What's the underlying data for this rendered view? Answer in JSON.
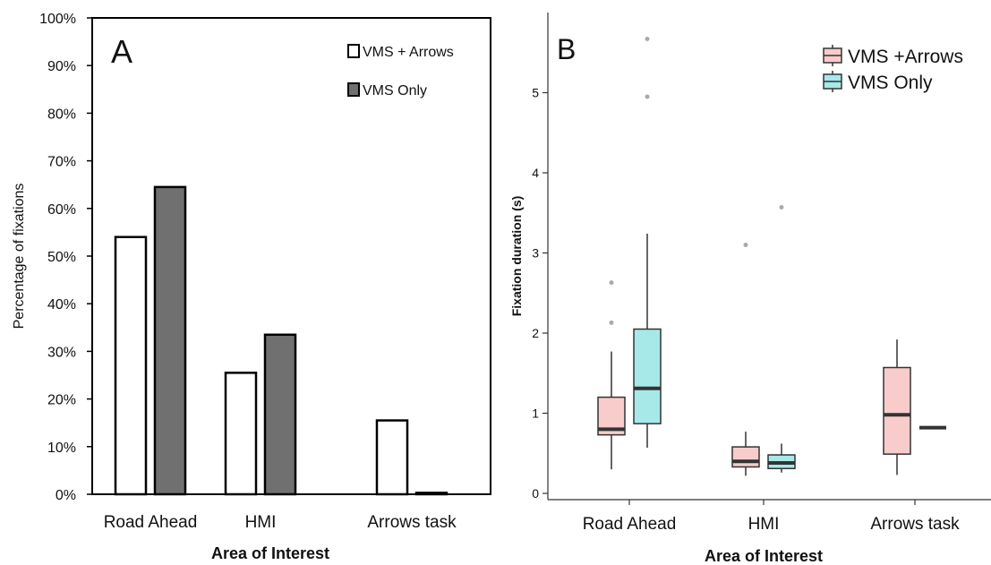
{
  "chart_data": [
    {
      "type": "bar",
      "panel_label": "A",
      "categories": [
        "Road Ahead",
        "HMI",
        "Arrows task"
      ],
      "series": [
        {
          "name": "VMS + Arrows",
          "values": [
            54,
            25.5,
            15.5
          ],
          "color": "#ffffff"
        },
        {
          "name": "VMS Only",
          "values": [
            64.5,
            33.5,
            0.3
          ],
          "color": "#707070"
        }
      ],
      "y_ticks": [
        "0%",
        "10%",
        "20%",
        "30%",
        "40%",
        "50%",
        "60%",
        "70%",
        "80%",
        "90%",
        "100%"
      ],
      "ylim": [
        0,
        100
      ],
      "xlabel": "Area of Interest",
      "ylabel": "Percentage of fixations",
      "legend": "top-right",
      "grid": false
    },
    {
      "type": "box",
      "panel_label": "B",
      "categories": [
        "Road Ahead",
        "HMI",
        "Arrows task"
      ],
      "series": [
        {
          "name": "VMS +Arrows",
          "color": "#f8cccb",
          "boxes": [
            {
              "min": 0.3,
              "q1": 0.73,
              "median": 0.8,
              "q3": 1.2,
              "max": 1.77,
              "outliers": [
                2.13,
                2.63
              ]
            },
            {
              "min": 0.22,
              "q1": 0.33,
              "median": 0.4,
              "q3": 0.58,
              "max": 0.77,
              "outliers": [
                3.1
              ]
            },
            {
              "min": 0.23,
              "q1": 0.49,
              "median": 0.98,
              "q3": 1.57,
              "max": 1.92,
              "outliers": []
            }
          ]
        },
        {
          "name": "VMS Only",
          "color": "#a6e9e8",
          "boxes": [
            {
              "min": 0.57,
              "q1": 0.87,
              "median": 1.31,
              "q3": 2.05,
              "max": 3.24,
              "outliers": [
                4.95,
                5.67
              ]
            },
            {
              "min": 0.26,
              "q1": 0.31,
              "median": 0.38,
              "q3": 0.48,
              "max": 0.62,
              "outliers": [
                3.57
              ]
            },
            {
              "min": 0.82,
              "q1": 0.82,
              "median": 0.82,
              "q3": 0.82,
              "max": 0.82,
              "outliers": []
            }
          ]
        }
      ],
      "y_ticks": [
        0,
        1,
        2,
        3,
        4,
        5
      ],
      "ylim": [
        -0.05,
        5.9
      ],
      "xlabel": "Area of Interest",
      "ylabel": "Fixation duration (s)",
      "legend": "top-right",
      "grid": false
    }
  ]
}
